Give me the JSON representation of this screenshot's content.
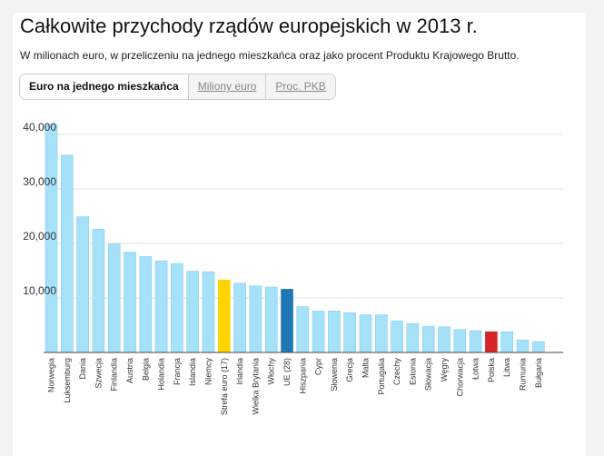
{
  "title": "Całkowite przychody rządów europejskich w 2013 r.",
  "subtitle": "W milionach euro, w przeliczeniu na jednego mieszkańca oraz jako procent Produktu Krajowego Brutto.",
  "tabs": [
    {
      "label": "Euro na jednego mieszkańca",
      "active": true
    },
    {
      "label": "Miliony euro",
      "active": false
    },
    {
      "label": "Proc. PKB",
      "active": false
    }
  ],
  "colors": {
    "default_bar": "#a6e1fa",
    "default_bar_edge": "#85cdf0",
    "euro_area": "#ffd400",
    "eu": "#1f77b4",
    "poland": "#d62728",
    "grid": "#e2e2e2",
    "axis": "#444444"
  },
  "chart_data": {
    "type": "bar",
    "categories": [
      "Norwegia",
      "Luksemburg",
      "Dania",
      "Szwecja",
      "Finlandia",
      "Austria",
      "Belgia",
      "Holandia",
      "Francja",
      "Islandia",
      "Niemcy",
      "Strefa euro (17)",
      "Irlandia",
      "Wielka Brytania",
      "Włochy",
      "UE (28)",
      "Hiszpania",
      "Cypr",
      "Słowenia",
      "Grecja",
      "Malta",
      "Portugalia",
      "Czechy",
      "Estonia",
      "Słowacja",
      "Węgry",
      "Chorwacja",
      "Łotwa",
      "Polska",
      "Litwa",
      "Rumunia",
      "Bułgaria"
    ],
    "values": [
      41800,
      36200,
      24900,
      22600,
      19900,
      18400,
      17600,
      16800,
      16300,
      14900,
      14800,
      13300,
      12700,
      12200,
      12000,
      11600,
      8400,
      7600,
      7600,
      7300,
      6900,
      6900,
      5800,
      5300,
      4800,
      4700,
      4200,
      4000,
      3800,
      3800,
      2300,
      2000
    ],
    "highlights": {
      "Strefa euro (17)": "euro_area",
      "UE (28)": "eu",
      "Polska": "poland"
    },
    "yticks": [
      10000,
      20000,
      30000,
      40000
    ],
    "ytick_labels": [
      "10,000",
      "20,000",
      "30,000",
      "40,000"
    ],
    "ylim": [
      0,
      42000
    ],
    "xlabel": "",
    "ylabel": "",
    "grid": true
  }
}
